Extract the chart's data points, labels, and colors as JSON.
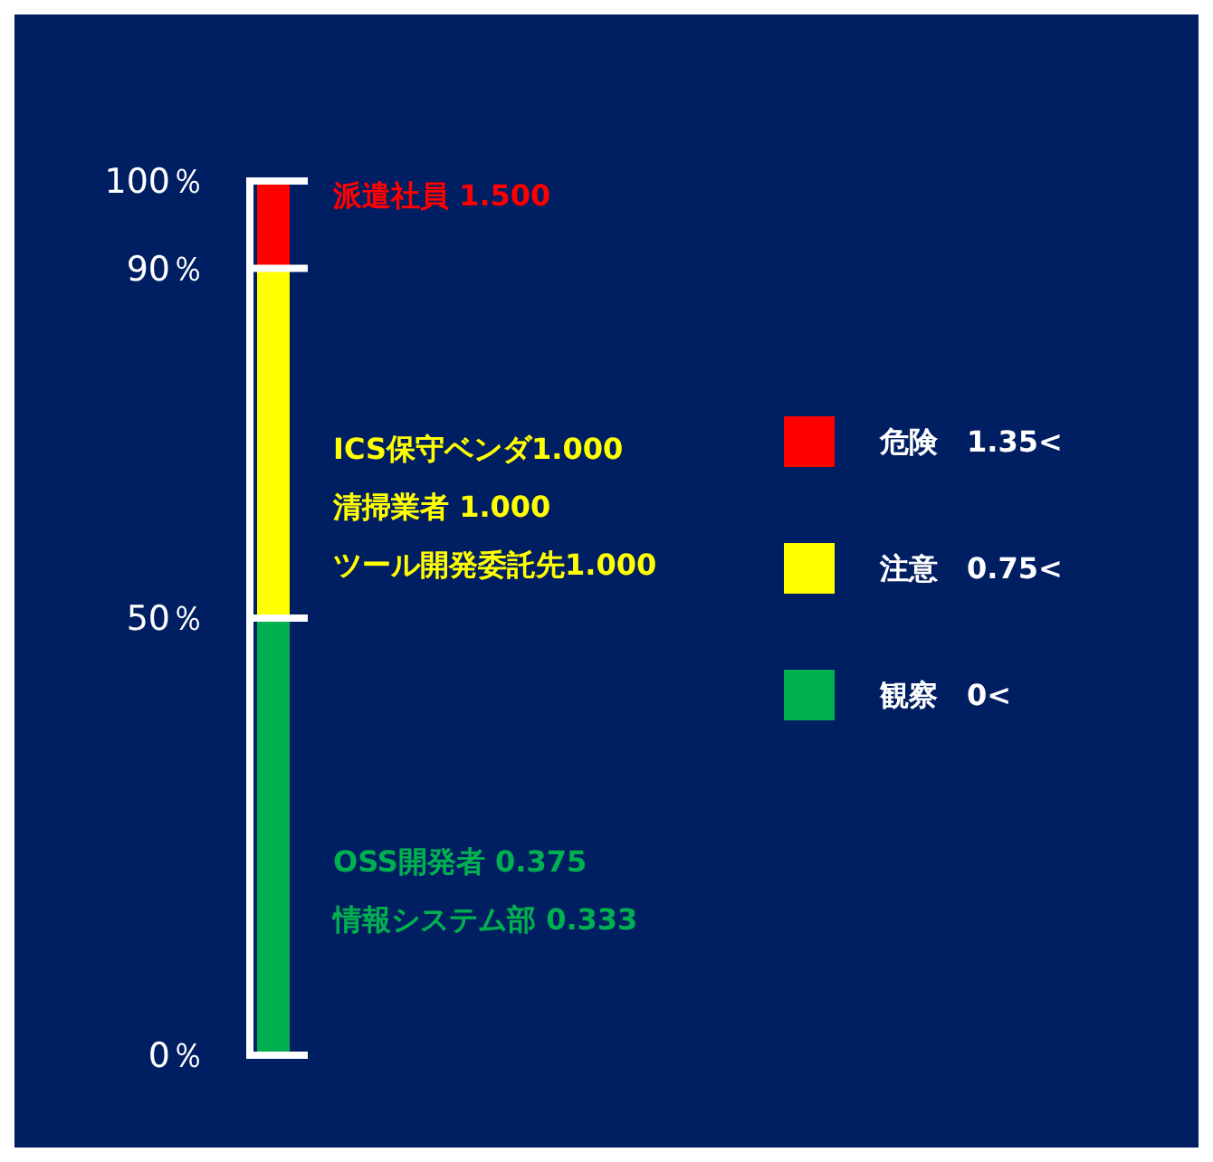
{
  "chart_data": {
    "type": "bar",
    "stacked": true,
    "categories": [
      null
    ],
    "series": [
      {
        "name": "観察　0<",
        "color": "#00b050",
        "values": [
          50
        ]
      },
      {
        "name": "注意　0.75<",
        "color": "#ffff00",
        "values": [
          40
        ]
      },
      {
        "name": "危険　1.35<",
        "color": "#ff0000",
        "values": [
          10
        ]
      }
    ],
    "ylim": [
      0,
      100
    ],
    "yticks": [
      {
        "value": 0,
        "label": "0％"
      },
      {
        "value": 50,
        "label": "50％"
      },
      {
        "value": 90,
        "label": "90％"
      },
      {
        "value": 100,
        "label": "100％"
      }
    ],
    "tick_labels": "y",
    "grid": "y",
    "legend": "right",
    "annotations": [
      "派遣社員 1.500",
      "ICS保守ベンダ1.000",
      "清掃業者 1.000",
      "ツール開発委託先1.000",
      "OSS開発者 0.375",
      "情報システム部 0.333"
    ]
  }
}
